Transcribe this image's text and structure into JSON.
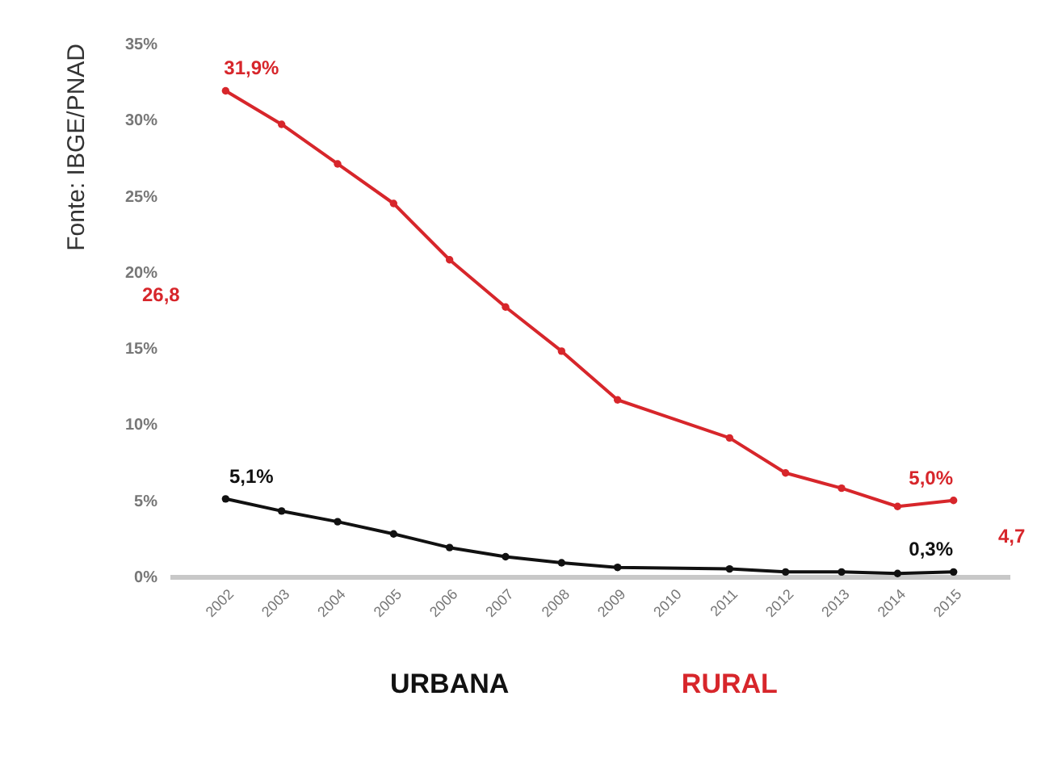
{
  "chart_data": {
    "type": "line",
    "categories": [
      "2002",
      "2003",
      "2004",
      "2005",
      "2006",
      "2007",
      "2008",
      "2009",
      "2010",
      "2011",
      "2012",
      "2013",
      "2014",
      "2015"
    ],
    "series": [
      {
        "name": "URBANA",
        "color": "#111111",
        "values": [
          5.1,
          4.3,
          3.6,
          2.8,
          1.9,
          1.3,
          0.9,
          0.6,
          null,
          0.5,
          0.3,
          0.3,
          0.2,
          0.3
        ]
      },
      {
        "name": "RURAL",
        "color": "#d7262b",
        "values": [
          31.9,
          29.7,
          27.1,
          24.5,
          20.8,
          17.7,
          14.8,
          11.6,
          null,
          9.1,
          6.8,
          5.8,
          4.6,
          5.0
        ]
      }
    ],
    "ylim": [
      0,
      35
    ],
    "yticks": [
      {
        "value": 0,
        "label": "0%"
      },
      {
        "value": 5,
        "label": "5%"
      },
      {
        "value": 10,
        "label": "10%"
      },
      {
        "value": 15,
        "label": "15%"
      },
      {
        "value": 20,
        "label": "20%"
      },
      {
        "value": 25,
        "label": "25%"
      },
      {
        "value": 30,
        "label": "30%"
      },
      {
        "value": 35,
        "label": "35%"
      }
    ],
    "grid": false,
    "legend": "bottom",
    "marker": "circle",
    "line_style": "solid",
    "annotations": [
      {
        "text": "31,9%",
        "x": "2002",
        "y": 31.9
      },
      {
        "text": "5,1%",
        "x": "2002",
        "y": 5.1
      },
      {
        "text": "5,0%",
        "x": "2015",
        "y": 5.0
      },
      {
        "text": "0,3%",
        "x": "2015",
        "y": 0.3
      },
      "Fonte: IBGE/PNAD",
      "26,8",
      "4,7"
    ]
  }
}
